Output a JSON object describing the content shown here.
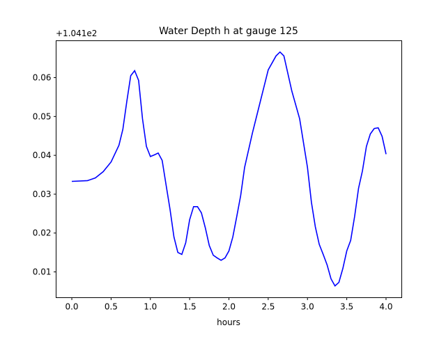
{
  "chart_data": {
    "type": "line",
    "title": "Water Depth h at gauge 125",
    "xlabel": "hours",
    "ylabel": "",
    "y_offset_label": "+1.041e2",
    "xlim": [
      -0.2,
      4.2
    ],
    "ylim": [
      0.00337,
      0.0695
    ],
    "xticks": [
      0.0,
      0.5,
      1.0,
      1.5,
      2.0,
      2.5,
      3.0,
      3.5,
      4.0
    ],
    "xtick_labels": [
      "0.0",
      "0.5",
      "1.0",
      "1.5",
      "2.0",
      "2.5",
      "3.0",
      "3.5",
      "4.0"
    ],
    "yticks": [
      0.01,
      0.02,
      0.03,
      0.04,
      0.05,
      0.06
    ],
    "ytick_labels": [
      "0.01",
      "0.02",
      "0.03",
      "0.04",
      "0.05",
      "0.06"
    ],
    "grid": false,
    "series": [
      {
        "name": "h",
        "color": "#0000ff",
        "x": [
          0,
          0.2,
          0.3,
          0.4,
          0.5,
          0.6,
          0.65,
          0.7,
          0.75,
          0.8,
          0.85,
          0.9,
          0.95,
          1.0,
          1.05,
          1.1,
          1.15,
          1.2,
          1.25,
          1.3,
          1.35,
          1.4,
          1.45,
          1.5,
          1.55,
          1.6,
          1.65,
          1.7,
          1.75,
          1.8,
          1.85,
          1.9,
          1.95,
          2.0,
          2.05,
          2.1,
          2.15,
          2.2,
          2.3,
          2.4,
          2.5,
          2.6,
          2.65,
          2.7,
          2.8,
          2.9,
          3.0,
          3.05,
          3.1,
          3.15,
          3.2,
          3.25,
          3.3,
          3.35,
          3.4,
          3.45,
          3.5,
          3.55,
          3.6,
          3.65,
          3.7,
          3.75,
          3.8,
          3.85,
          3.9,
          3.95,
          4.0
        ],
        "y": [
          0.0333,
          0.0335,
          0.0342,
          0.0358,
          0.0383,
          0.0426,
          0.0467,
          0.0539,
          0.0605,
          0.0618,
          0.0593,
          0.0494,
          0.0423,
          0.0397,
          0.0401,
          0.0406,
          0.0387,
          0.0324,
          0.0261,
          0.019,
          0.015,
          0.0145,
          0.0175,
          0.0234,
          0.0268,
          0.0268,
          0.0252,
          0.0213,
          0.0168,
          0.0143,
          0.0136,
          0.013,
          0.0136,
          0.0154,
          0.019,
          0.0243,
          0.0297,
          0.0369,
          0.0458,
          0.0539,
          0.062,
          0.0656,
          0.0666,
          0.0656,
          0.0566,
          0.0494,
          0.0369,
          0.0279,
          0.0216,
          0.0171,
          0.0145,
          0.0118,
          0.0082,
          0.0064,
          0.0073,
          0.0109,
          0.0154,
          0.0181,
          0.0243,
          0.0315,
          0.036,
          0.0423,
          0.0455,
          0.0469,
          0.0471,
          0.0449,
          0.0403
        ]
      }
    ]
  }
}
